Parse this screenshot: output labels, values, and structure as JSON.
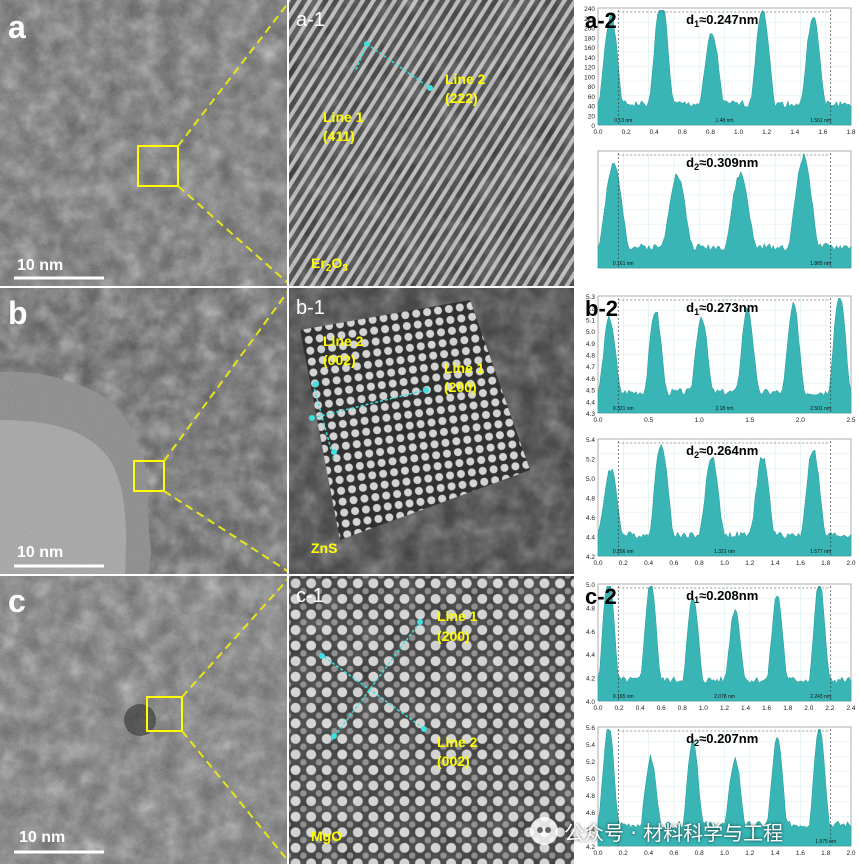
{
  "figure": {
    "colors": {
      "accent_yellow": "#ffff00",
      "dash_yellow": "#e6e61a",
      "profile_teal": "#39b5b5",
      "marker_cyan": "#40e0e0",
      "panel_gray": "#5a5a5a"
    },
    "rows": [
      {
        "panel_label": "a",
        "scale_bar": "10 nm",
        "hrtem": {
          "label": "a-1",
          "material_prefix": "Er",
          "material_sub1": "2",
          "material_mid": "O",
          "material_sub2": "3",
          "line1": {
            "name": "Line 1",
            "plane": "(411)"
          },
          "line2": {
            "name": "Line 2",
            "plane": "(222)"
          }
        },
        "profiles": {
          "label": "a-2",
          "top": {
            "d_prefix": "d",
            "d_sub": "1",
            "d_value": "≈0.247nm",
            "y_ticks": [
              "240",
              "220",
              "200",
              "180",
              "160",
              "140",
              "120",
              "100",
              "80",
              "60",
              "40",
              "20",
              "0"
            ],
            "x_ticks": [
              "0.0",
              "0.2",
              "0.4",
              "0.6",
              "0.8",
              "1.0",
              "1.2",
              "1.4",
              "1.6",
              "1.8"
            ],
            "marks": [
              "0.13 nm",
              "1.48 nm",
              "1.561 nm"
            ]
          },
          "bottom": {
            "d_prefix": "d",
            "d_sub": "2",
            "d_value": "≈0.309nm",
            "marks": [
              "0.161 nm",
              "1.865 nm"
            ]
          }
        }
      },
      {
        "panel_label": "b",
        "scale_bar": "10 nm",
        "hrtem": {
          "label": "b-1",
          "material": "ZnS",
          "line1": {
            "name": "Line 1",
            "plane": "(200)"
          },
          "line2": {
            "name": "Line 2",
            "plane": "(002)"
          }
        },
        "profiles": {
          "label": "b-2",
          "top": {
            "d_prefix": "d",
            "d_sub": "1",
            "d_value": "≈0.273nm",
            "y_ticks": [
              "5.3",
              "5.2",
              "5.1",
              "5.0",
              "4.9",
              "4.8",
              "4.7",
              "4.6",
              "4.5",
              "4.4",
              "4.3"
            ],
            "x_ticks": [
              "0.0",
              "0.5",
              "1.0",
              "1.5",
              "2.0",
              "2.5"
            ],
            "marks": [
              "0.321 nm",
              "2.18 nm",
              "2.501 nm"
            ]
          },
          "bottom": {
            "d_prefix": "d",
            "d_sub": "2",
            "d_value": "≈0.264nm",
            "y_ticks": [
              "5.4",
              "5.2",
              "5.0",
              "4.8",
              "4.6",
              "4.4",
              "4.2"
            ],
            "x_ticks": [
              "0.0",
              "0.2",
              "0.4",
              "0.6",
              "0.8",
              "1.0",
              "1.2",
              "1.4",
              "1.6",
              "1.8",
              "2.0"
            ],
            "marks": [
              "0.256 nm",
              "1.321 nm",
              "1.577 nm"
            ]
          }
        }
      },
      {
        "panel_label": "c",
        "scale_bar": "10 nm",
        "hrtem": {
          "label": "c-1",
          "material": "MgO",
          "line1": {
            "name": "Line 1",
            "plane": "(200)"
          },
          "line2": {
            "name": "Line 2",
            "plane": "(002)"
          }
        },
        "profiles": {
          "label": "c-2",
          "top": {
            "d_prefix": "d",
            "d_sub": "1",
            "d_value": "≈0.208nm",
            "y_ticks": [
              "5.0",
              "4.8",
              "4.6",
              "4.4",
              "4.2",
              "4.0"
            ],
            "x_ticks": [
              "0.0",
              "0.2",
              "0.4",
              "0.6",
              "0.8",
              "1.0",
              "1.2",
              "1.4",
              "1.6",
              "1.8",
              "2.0",
              "2.2",
              "2.4"
            ],
            "marks": [
              "0.165 nm",
              "2.078 nm",
              "2.243 nm"
            ]
          },
          "bottom": {
            "d_prefix": "d",
            "d_sub": "2",
            "d_value": "≈0.207nm",
            "y_ticks": [
              "5.6",
              "5.4",
              "5.2",
              "5.0",
              "4.8",
              "4.6",
              "4.4",
              "4.2"
            ],
            "x_ticks": [
              "0.0",
              "0.2",
              "0.4",
              "0.6",
              "0.8",
              "1.0",
              "1.2",
              "1.4",
              "1.6",
              "1.8",
              "2.0"
            ],
            "marks": [
              "1.975 nm"
            ]
          }
        }
      }
    ],
    "watermark": "公众号 · 材料科学与工程"
  }
}
